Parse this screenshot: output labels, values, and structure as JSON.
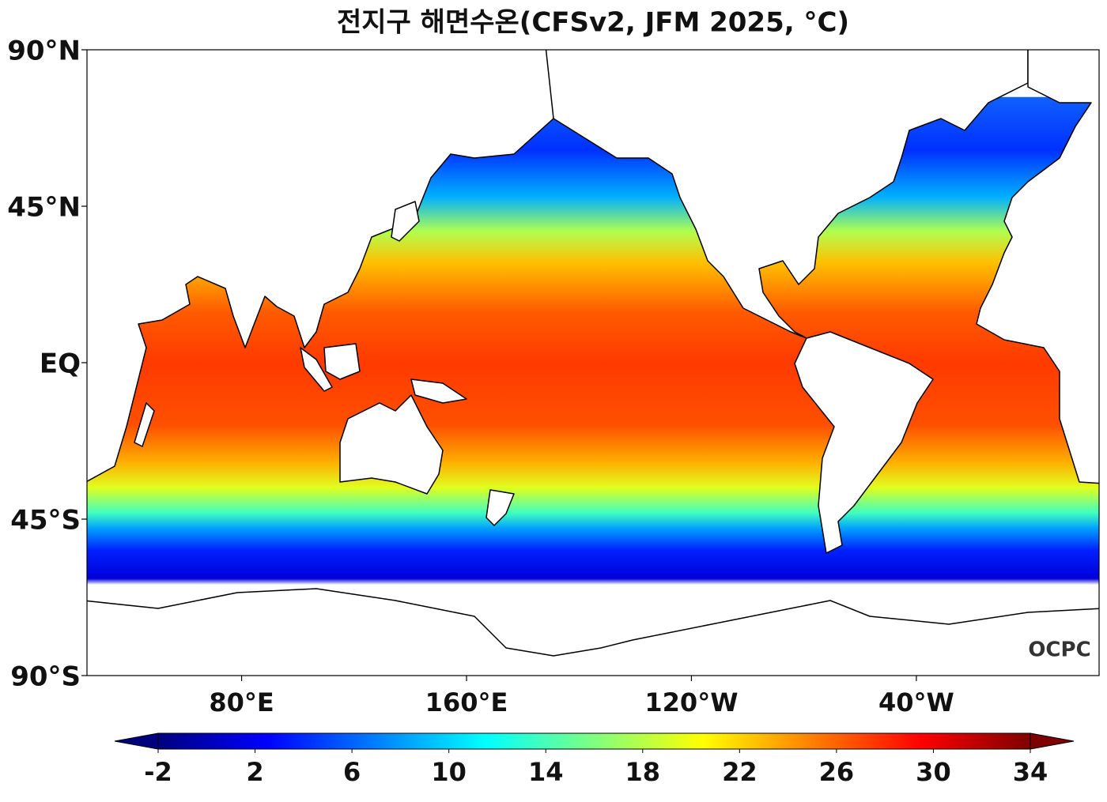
{
  "map": {
    "title": "전지구 해면수온(CFSv2, JFM 2025, °C)",
    "xlim": [
      25,
      385
    ],
    "ylim": [
      -90,
      90
    ],
    "xticks": [
      {
        "value": 80,
        "label": "80°E"
      },
      {
        "value": 160,
        "label": "160°E"
      },
      {
        "value": -120,
        "label": "120°W"
      },
      {
        "value": -40,
        "label": "40°W"
      }
    ],
    "yticks": [
      {
        "value": 90,
        "label": "90°N"
      },
      {
        "value": 45,
        "label": "45°N"
      },
      {
        "value": 0,
        "label": "EQ"
      },
      {
        "value": -45,
        "label": "45°S"
      },
      {
        "value": -90,
        "label": "90°S"
      }
    ],
    "colorbar": {
      "lim": [
        -2,
        34
      ],
      "ticks": [
        -2,
        2,
        6,
        10,
        14,
        18,
        22,
        26,
        30,
        34
      ],
      "colormap": [
        "#00007f",
        "#0000ff",
        "#007fff",
        "#00ffff",
        "#7fff7f",
        "#ffff00",
        "#ff7f00",
        "#ff0000",
        "#7f0000"
      ],
      "extend": "both"
    },
    "logo": "OCPC"
  }
}
